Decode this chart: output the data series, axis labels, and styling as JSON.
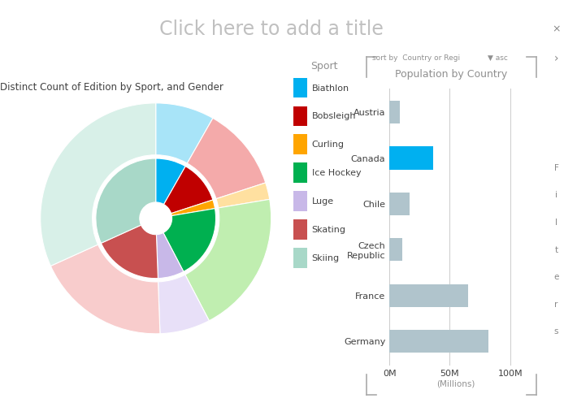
{
  "title": "Click here to add a title",
  "pie_title": "Distinct Count of Edition by Sport, and Gender",
  "bar_title": "Population by Country",
  "sports": [
    "Biathlon",
    "Bobsleigh",
    "Curling",
    "Ice Hockey",
    "Luge",
    "Skating",
    "Skiing"
  ],
  "sport_colors_dark": [
    "#00B0F0",
    "#C00000",
    "#FFA500",
    "#00B050",
    "#C8B8E8",
    "#C85050",
    "#A8D8C8"
  ],
  "sport_colors_light": [
    "#A8E4F8",
    "#F4AAAA",
    "#FFE0A0",
    "#C0EEB0",
    "#E8E0F8",
    "#F8CCCC",
    "#D8F0E8"
  ],
  "pie_male_values": [
    4,
    6,
    1,
    10,
    3,
    8,
    15
  ],
  "pie_female_values": [
    3,
    4,
    1,
    7,
    3,
    8,
    12
  ],
  "bar_countries": [
    "Austria",
    "Canada",
    "Chile",
    "Czech\nRepublic",
    "France",
    "Germany"
  ],
  "bar_values": [
    8.5,
    36,
    17,
    10.5,
    65,
    82
  ],
  "bar_color_default": "#B0C4CC",
  "bar_color_highlight": "#00B0F0",
  "bar_highlight_idx": 1,
  "bar_xlim": [
    0,
    110
  ],
  "bar_xticks": [
    0,
    50,
    100
  ],
  "bar_xtick_labels": [
    "0M",
    "50M",
    "100M"
  ],
  "bg_color": "#FFFFFF",
  "text_color_title": "#C0C0C0",
  "text_color_label": "#909090",
  "text_color_dark": "#404040",
  "filters_bg": "#F2F2F2",
  "sort_text": "sort by  Country or Regi",
  "sort_suffix": "▼ asc"
}
